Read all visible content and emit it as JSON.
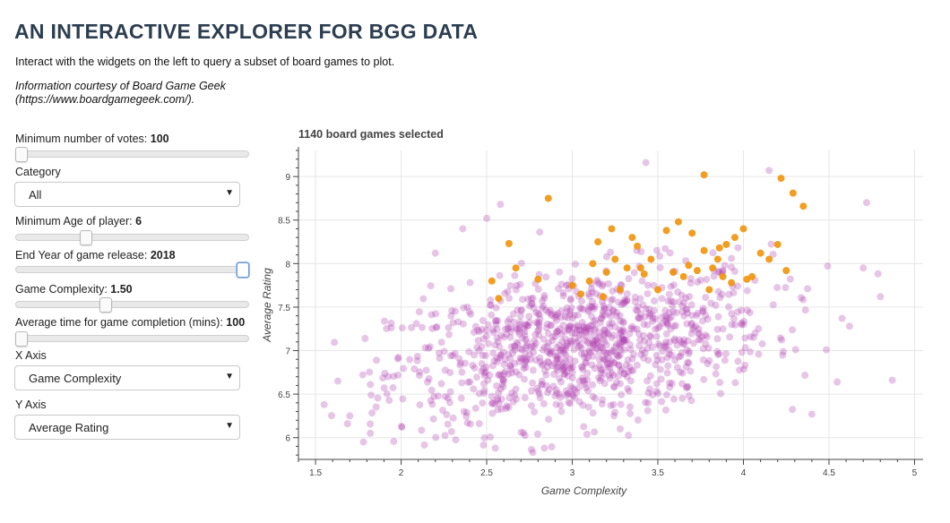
{
  "header": {
    "title": "AN INTERACTIVE EXPLORER FOR BGG DATA",
    "intro": "Interact with the widgets on the left to query a subset of board games to plot.",
    "credit_line1": "Information courtesy of Board Game Geek",
    "credit_line2": "(https://www.boardgamegeek.com/)."
  },
  "controls": {
    "min_votes": {
      "label": "Minimum number of votes:",
      "value": "100",
      "fraction": 0.0
    },
    "category": {
      "label": "Category",
      "selected": "All"
    },
    "min_age": {
      "label": "Minimum Age of player:",
      "value": "6",
      "fraction": 0.29
    },
    "end_year": {
      "label": "End Year of game release:",
      "value": "2018",
      "fraction": 1.0
    },
    "complexity": {
      "label": "Game Complexity:",
      "value": "1.50",
      "fraction": 0.38
    },
    "avg_time": {
      "label": "Average time for game completion (mins):",
      "value": "100",
      "fraction": 0.0
    },
    "x_axis": {
      "label": "X Axis",
      "selected": "Game Complexity"
    },
    "y_axis": {
      "label": "Y Axis",
      "selected": "Average Rating"
    }
  },
  "chart_data": {
    "type": "scatter",
    "title": "1140 board games selected",
    "xlabel": "Game Complexity",
    "ylabel": "Average Rating",
    "xlim": [
      1.4,
      5.05
    ],
    "ylim": [
      5.75,
      9.3
    ],
    "xticks": [
      1.5,
      2,
      2.5,
      3,
      3.5,
      4,
      4.5,
      5
    ],
    "yticks": [
      6,
      6.5,
      7,
      7.5,
      8,
      8.5,
      9
    ],
    "grid": true,
    "colors": {
      "default": "#b03fb0",
      "highlight": "#f0940a",
      "axis": "#444444",
      "grid": "#e6e6e6"
    },
    "series": [
      {
        "color": "#f0940a",
        "points": [
          [
            2.86,
            8.75
          ],
          [
            3.77,
            9.02
          ],
          [
            4.22,
            8.98
          ],
          [
            4.29,
            8.81
          ],
          [
            4.35,
            8.66
          ],
          [
            2.63,
            8.23
          ],
          [
            2.67,
            7.95
          ],
          [
            2.57,
            7.6
          ],
          [
            2.53,
            7.8
          ],
          [
            2.8,
            7.82
          ],
          [
            3.0,
            7.75
          ],
          [
            3.05,
            7.65
          ],
          [
            3.1,
            7.8
          ],
          [
            3.15,
            8.25
          ],
          [
            3.2,
            7.9
          ],
          [
            3.23,
            8.4
          ],
          [
            3.25,
            8.05
          ],
          [
            3.28,
            7.7
          ],
          [
            3.32,
            7.95
          ],
          [
            3.35,
            8.3
          ],
          [
            3.38,
            8.2
          ],
          [
            3.4,
            7.95
          ],
          [
            3.46,
            8.05
          ],
          [
            3.5,
            7.7
          ],
          [
            3.55,
            8.38
          ],
          [
            3.59,
            7.9
          ],
          [
            3.62,
            8.48
          ],
          [
            3.65,
            7.85
          ],
          [
            3.7,
            8.35
          ],
          [
            3.73,
            7.92
          ],
          [
            3.77,
            8.15
          ],
          [
            3.8,
            7.7
          ],
          [
            3.82,
            7.95
          ],
          [
            3.85,
            8.05
          ],
          [
            3.88,
            7.85
          ],
          [
            3.9,
            8.22
          ],
          [
            3.93,
            7.78
          ],
          [
            3.95,
            8.3
          ],
          [
            4.0,
            8.4
          ],
          [
            4.05,
            7.85
          ],
          [
            4.1,
            8.12
          ],
          [
            4.15,
            8.05
          ],
          [
            4.2,
            8.22
          ],
          [
            4.25,
            7.92
          ],
          [
            3.18,
            7.62
          ],
          [
            3.42,
            7.88
          ],
          [
            3.68,
            7.98
          ],
          [
            3.86,
            8.18
          ],
          [
            4.02,
            7.82
          ],
          [
            3.12,
            8.0
          ]
        ]
      }
    ],
    "background_cloud": {
      "count": 1090,
      "x_mean": 3.05,
      "x_sd": 0.55,
      "y_mean": 7.05,
      "y_sd": 0.45,
      "corr": 0.35,
      "extra_points": [
        [
          3.43,
          9.16
        ],
        [
          4.15,
          9.07
        ],
        [
          4.72,
          8.7
        ],
        [
          2.58,
          8.68
        ],
        [
          2.5,
          8.52
        ],
        [
          1.55,
          6.38
        ],
        [
          1.63,
          6.65
        ],
        [
          1.78,
          5.95
        ],
        [
          1.82,
          6.05
        ],
        [
          4.87,
          6.66
        ],
        [
          4.8,
          7.62
        ],
        [
          2.77,
          5.83
        ],
        [
          2.55,
          5.88
        ],
        [
          3.28,
          6.1
        ],
        [
          4.4,
          6.27
        ],
        [
          4.62,
          7.28
        ],
        [
          4.7,
          7.95
        ],
        [
          2.2,
          8.12
        ],
        [
          2.36,
          8.4
        ],
        [
          1.7,
          6.25
        ]
      ]
    }
  }
}
